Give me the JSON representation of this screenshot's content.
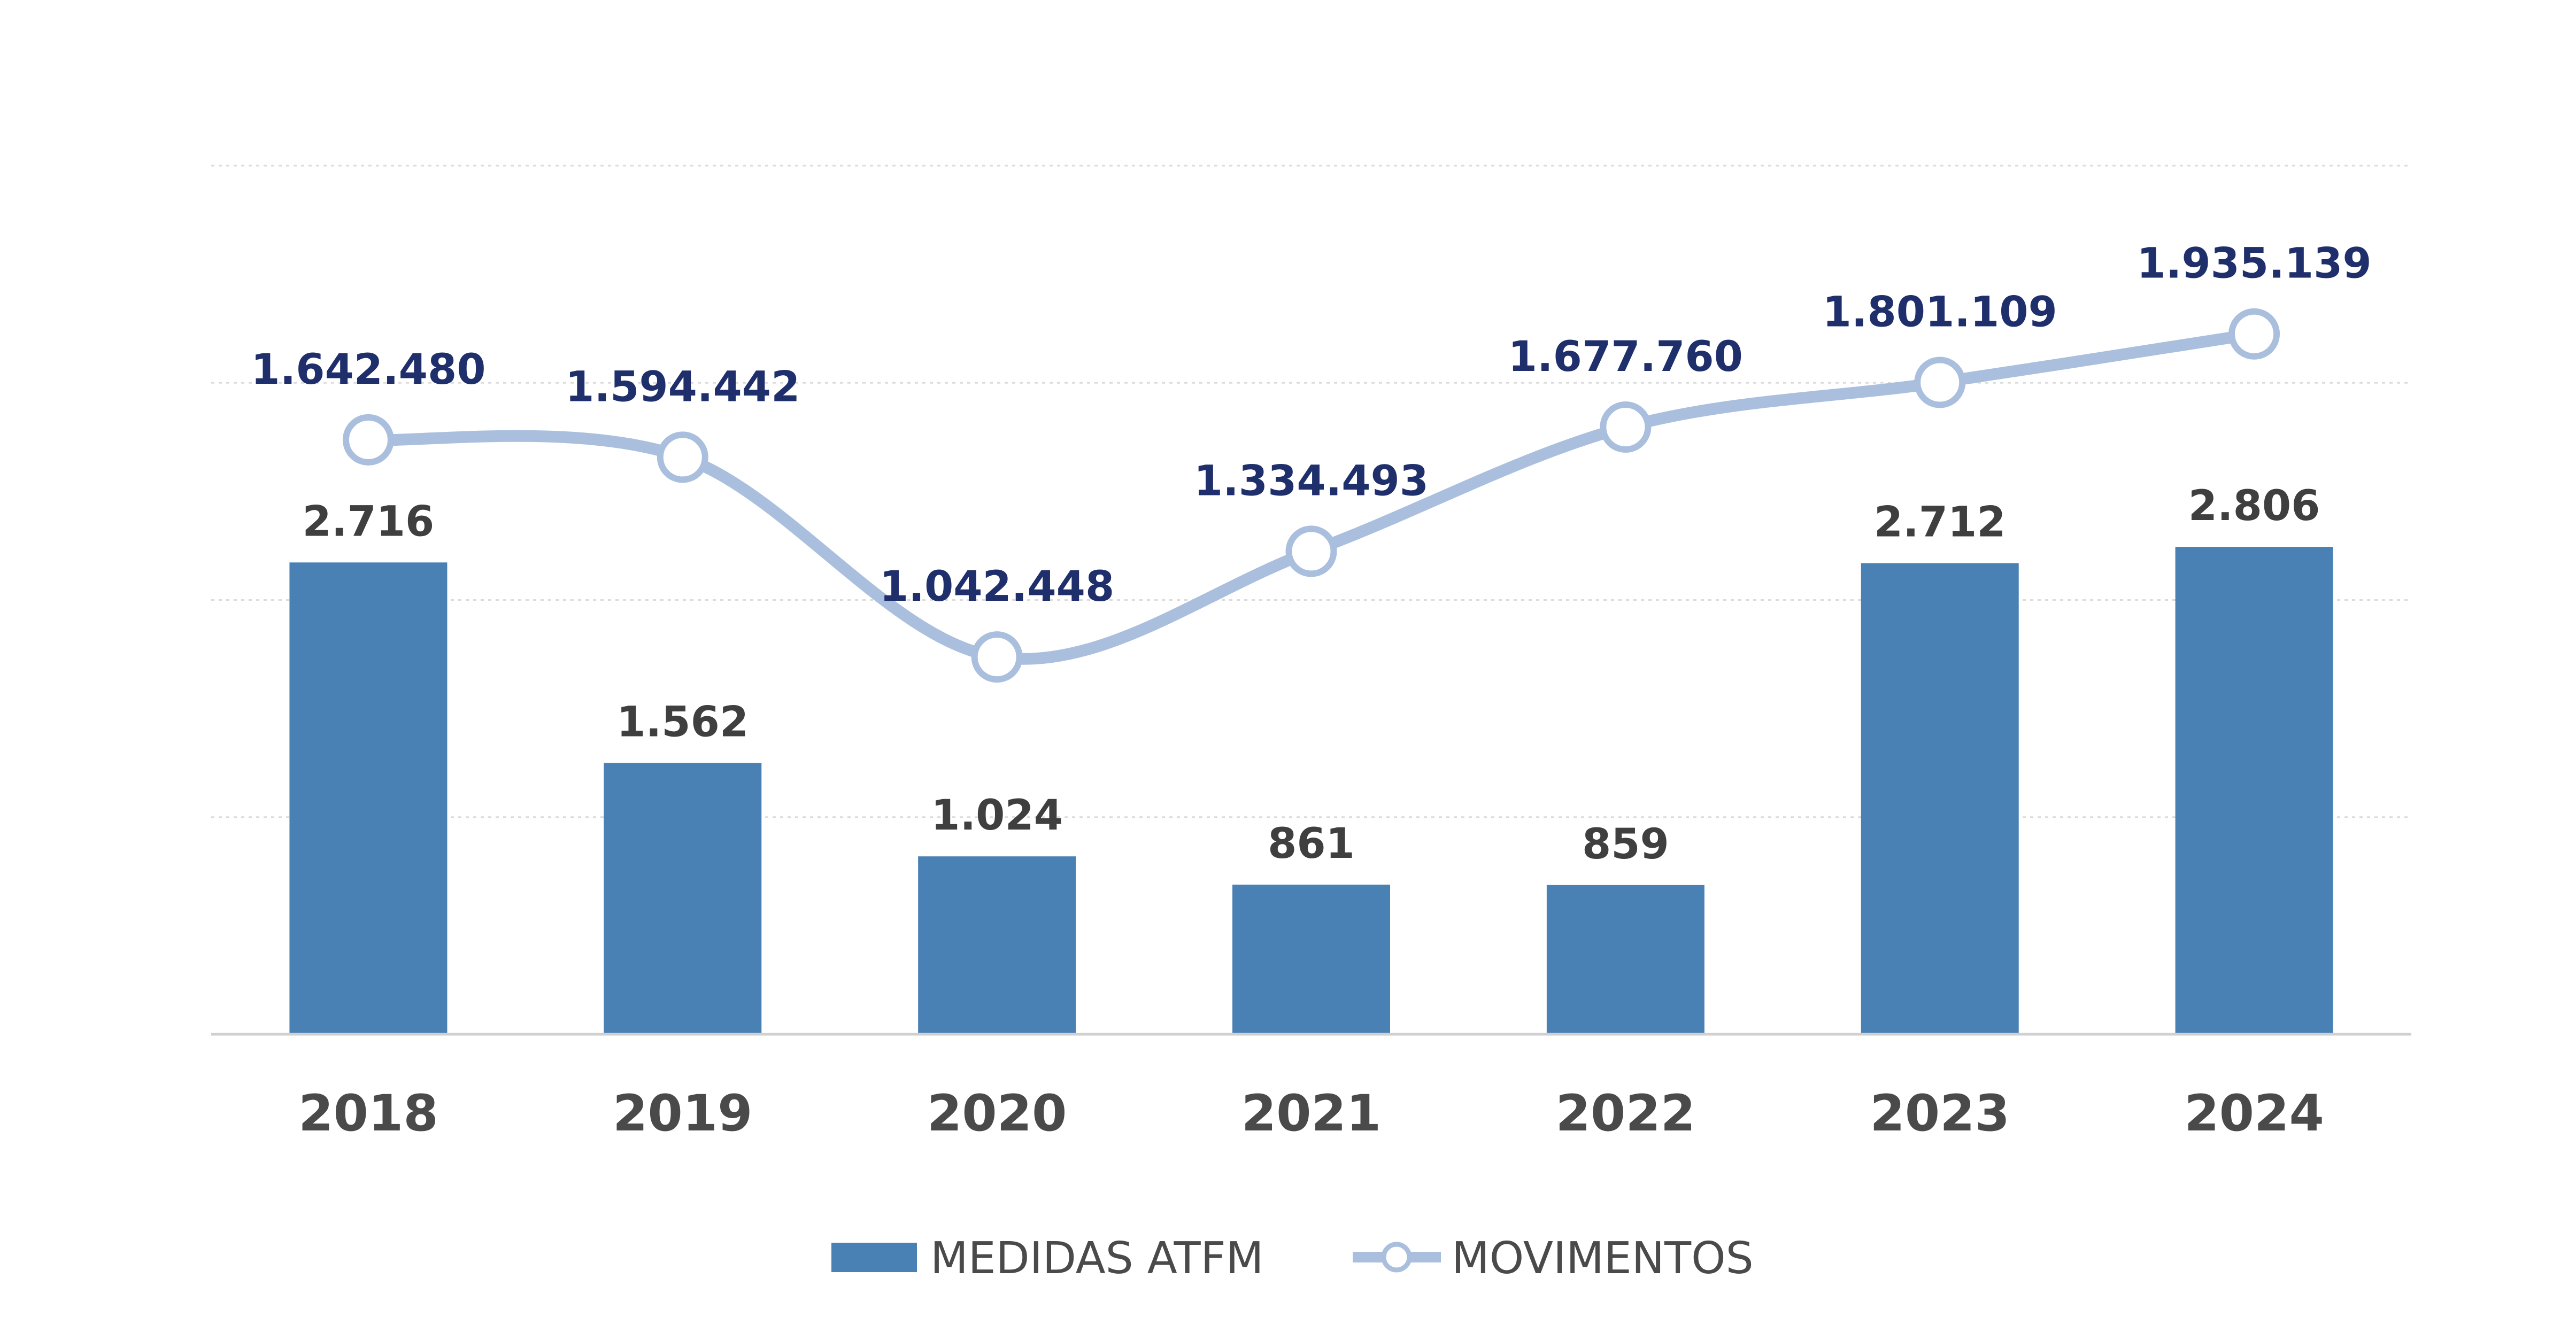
{
  "chart_data": {
    "type": "bar",
    "categories": [
      "2018",
      "2019",
      "2020",
      "2021",
      "2022",
      "2023",
      "2024"
    ],
    "series": [
      {
        "name": "MEDIDAS ATFM",
        "type": "bar",
        "axis": "left",
        "color": "#4a81b5",
        "values": [
          2716,
          1562,
          1024,
          861,
          859,
          2712,
          2806
        ],
        "labels": [
          "2.716",
          "1.562",
          "1.024",
          "861",
          "859",
          "2.712",
          "2.806"
        ]
      },
      {
        "name": "MOVIMENTOS",
        "type": "line",
        "axis": "right",
        "color": "#a9bfdd",
        "label_color": "#1f2f6b",
        "values": [
          1642480,
          1594442,
          1042448,
          1334493,
          1677760,
          1801109,
          1935139
        ],
        "labels": [
          "1.642.480",
          "1.594.442",
          "1.042.448",
          "1.334.493",
          "1.677.760",
          "1.801.109",
          "1.935.139"
        ]
      }
    ],
    "ylim_left": [
      0,
      5000
    ],
    "ylim_right": [
      0,
      2400000
    ],
    "grid": true,
    "legend": "bottom"
  }
}
